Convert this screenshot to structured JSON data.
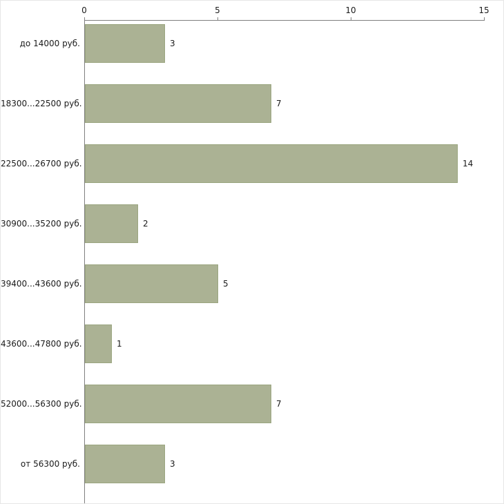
{
  "chart_data": {
    "type": "bar",
    "orientation": "horizontal",
    "title": "",
    "xlabel": "",
    "ylabel": "",
    "categories": [
      "до 14000 руб.",
      "18300...22500 руб.",
      "22500...26700 руб.",
      "30900...35200 руб.",
      "39400...43600 руб.",
      "43600...47800 руб.",
      "52000...56300 руб.",
      "от 56300 руб."
    ],
    "values": [
      3,
      7,
      14,
      2,
      5,
      1,
      7,
      3
    ],
    "value_labels": [
      "3",
      "7",
      "14",
      "2",
      "5",
      "1",
      "7",
      "3"
    ],
    "x_ticks": [
      0,
      5,
      10,
      15
    ],
    "x_tick_labels": [
      "0",
      "5",
      "10",
      "15"
    ],
    "xlim": [
      0,
      15
    ],
    "grid": false,
    "legend": false,
    "axis_position": "top-left",
    "bar_color": "#abb294",
    "bar_border_color": "#9aa57f",
    "axis_color": "#7f7f7f",
    "text_color": "#1a1a1a",
    "background_color": "#ffffff"
  }
}
